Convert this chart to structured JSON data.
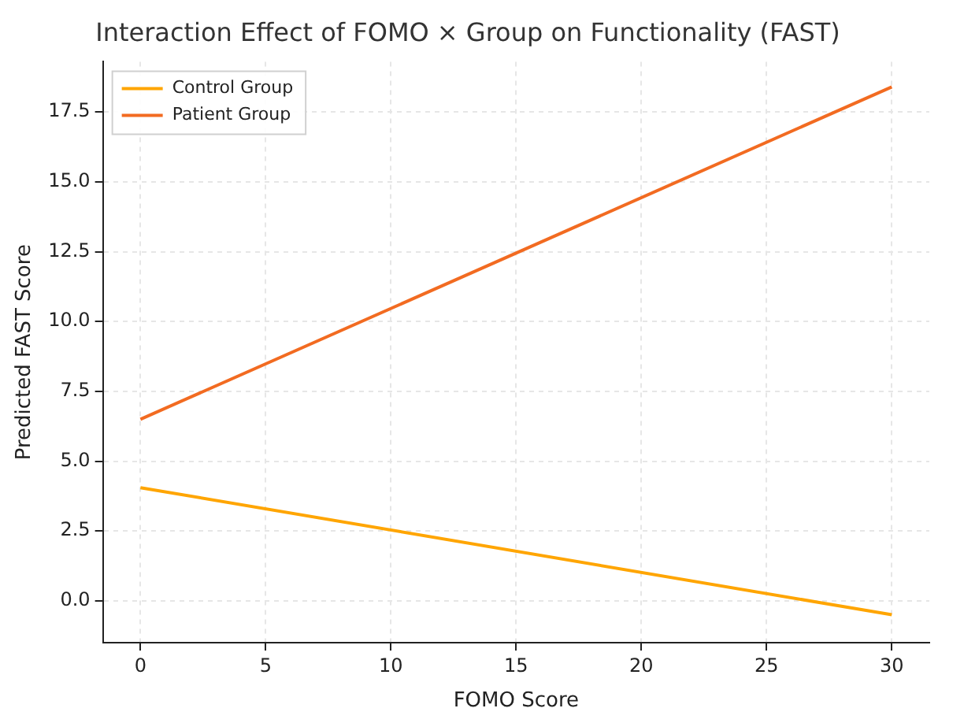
{
  "chart_data": {
    "type": "line",
    "title": "Interaction Effect of FOMO × Group on Functionality (FAST)",
    "xlabel": "FOMO Score",
    "ylabel": "Predicted FAST Score",
    "x": [
      0,
      30
    ],
    "series": [
      {
        "name": "Control Group",
        "color": "#ffa500",
        "values": [
          4.05,
          -0.5
        ]
      },
      {
        "name": "Patient Group",
        "color": "#f26b21",
        "values": [
          6.5,
          18.4
        ]
      }
    ],
    "xlim": [
      -1.5,
      31.5
    ],
    "xticks": [
      0,
      5,
      10,
      15,
      20,
      25,
      30
    ],
    "ylim": [
      -1.5,
      19.3
    ],
    "yticks": [
      {
        "value": 0,
        "label": "0.0"
      },
      {
        "value": 2.5,
        "label": "2.5"
      },
      {
        "value": 5,
        "label": "5.0"
      },
      {
        "value": 7.5,
        "label": "7.5"
      },
      {
        "value": 10,
        "label": "10.0"
      },
      {
        "value": 12.5,
        "label": "12.5"
      },
      {
        "value": 15,
        "label": "15.0"
      },
      {
        "value": 17.5,
        "label": "17.5"
      }
    ],
    "grid": true,
    "legend": "top left",
    "marker": "none",
    "line_style": "solid"
  }
}
